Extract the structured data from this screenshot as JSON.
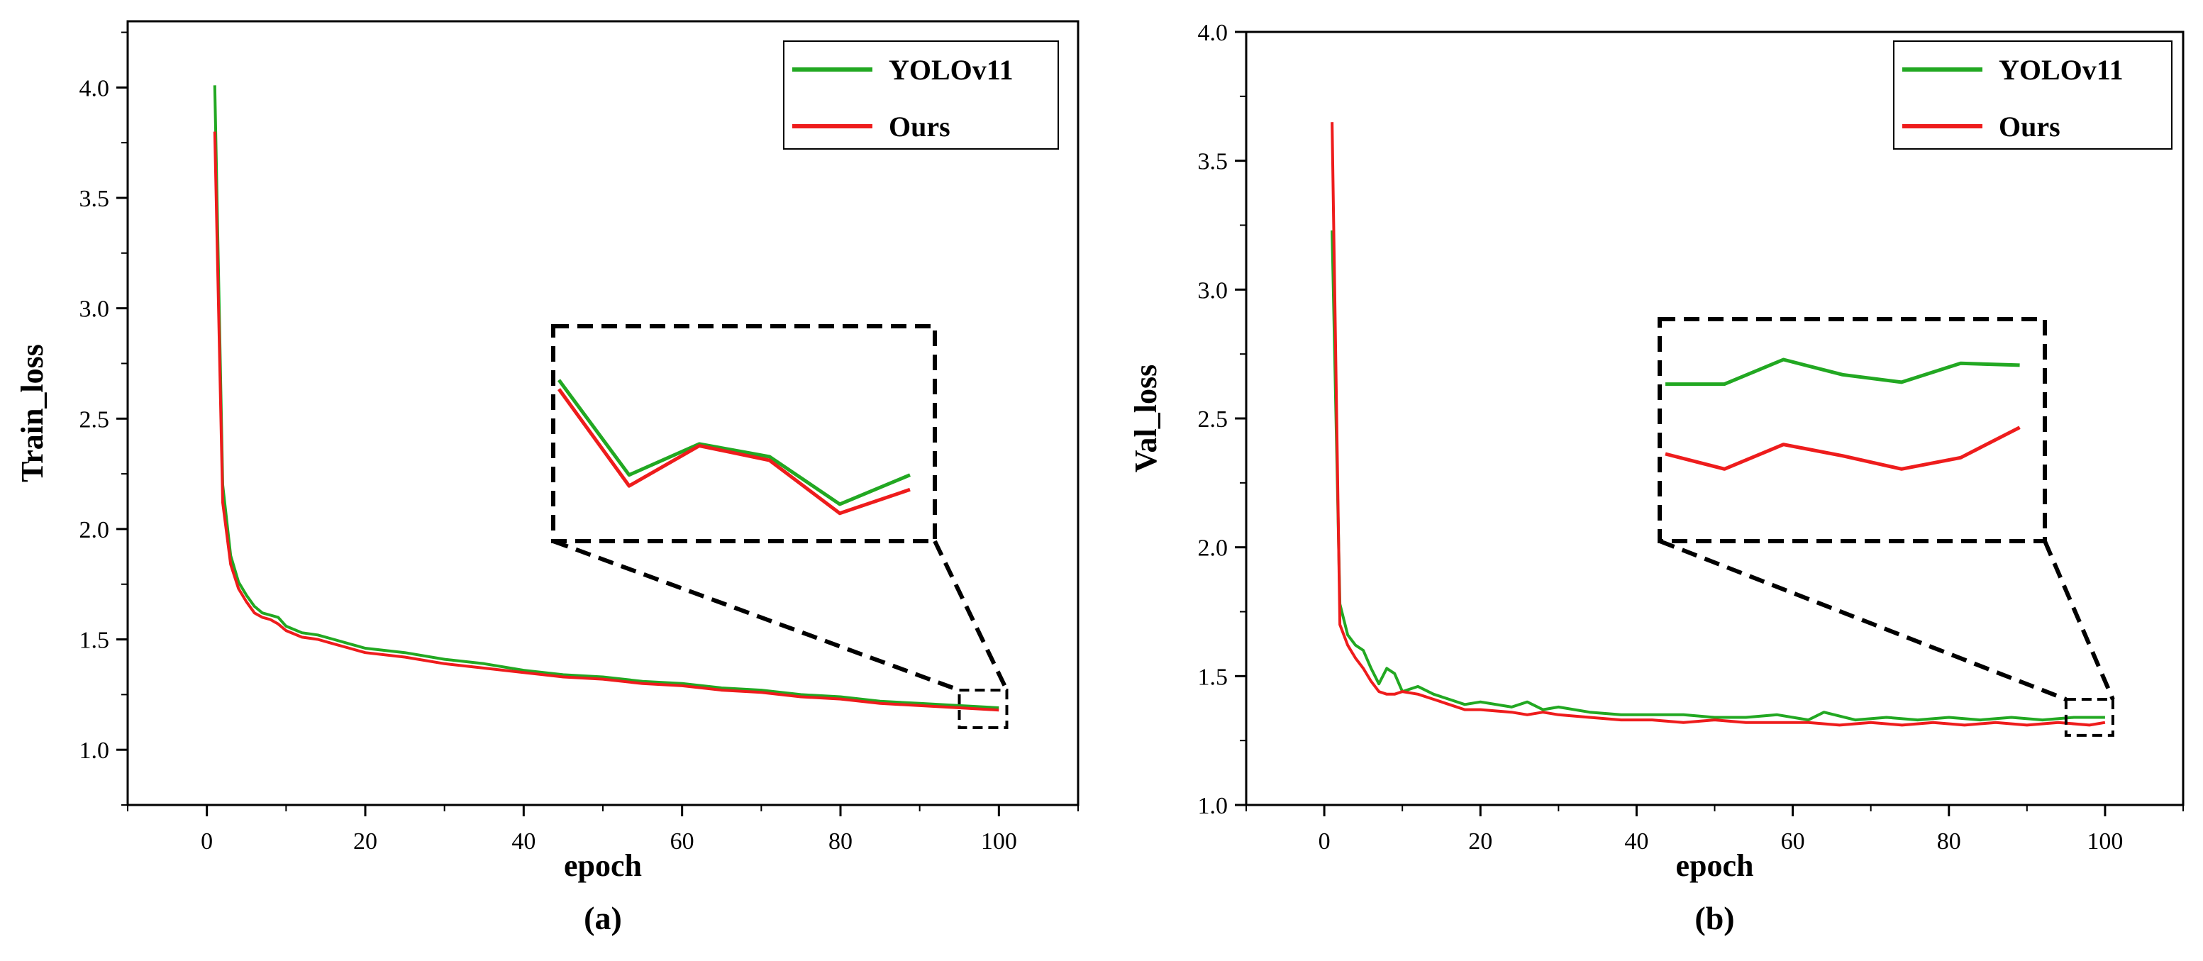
{
  "chart_data": [
    {
      "type": "line",
      "caption": "(a)",
      "xlabel": "epoch",
      "ylabel": "Train_loss",
      "xlim": [
        -10,
        110
      ],
      "ylim": [
        0.75,
        4.3
      ],
      "xticks": [
        0,
        20,
        40,
        60,
        80,
        100
      ],
      "yticks": [
        1.0,
        1.5,
        2.0,
        2.5,
        3.0,
        3.5,
        4.0
      ],
      "xtick_labels": [
        "0",
        "20",
        "40",
        "60",
        "80",
        "100"
      ],
      "ytick_labels": [
        "1.0",
        "1.5",
        "2.0",
        "2.5",
        "3.0",
        "3.5",
        "4.0"
      ],
      "legend_position": "top-right",
      "grid": false,
      "series": [
        {
          "name": "YOLOv11",
          "color": "#22a822",
          "points": [
            [
              1,
              4.01
            ],
            [
              2,
              2.2
            ],
            [
              3,
              1.88
            ],
            [
              4,
              1.76
            ],
            [
              5,
              1.7
            ],
            [
              6,
              1.65
            ],
            [
              7,
              1.62
            ],
            [
              8,
              1.61
            ],
            [
              9,
              1.6
            ],
            [
              10,
              1.56
            ],
            [
              12,
              1.53
            ],
            [
              14,
              1.52
            ],
            [
              16,
              1.5
            ],
            [
              18,
              1.48
            ],
            [
              20,
              1.46
            ],
            [
              25,
              1.44
            ],
            [
              30,
              1.41
            ],
            [
              35,
              1.39
            ],
            [
              40,
              1.36
            ],
            [
              45,
              1.34
            ],
            [
              50,
              1.33
            ],
            [
              55,
              1.31
            ],
            [
              60,
              1.3
            ],
            [
              65,
              1.28
            ],
            [
              70,
              1.27
            ],
            [
              75,
              1.25
            ],
            [
              80,
              1.24
            ],
            [
              85,
              1.22
            ],
            [
              90,
              1.21
            ],
            [
              95,
              1.2
            ],
            [
              100,
              1.19
            ]
          ]
        },
        {
          "name": "Ours",
          "color": "#ee1c1c",
          "points": [
            [
              1,
              3.8
            ],
            [
              2,
              2.12
            ],
            [
              3,
              1.84
            ],
            [
              4,
              1.73
            ],
            [
              5,
              1.67
            ],
            [
              6,
              1.62
            ],
            [
              7,
              1.6
            ],
            [
              8,
              1.59
            ],
            [
              9,
              1.57
            ],
            [
              10,
              1.54
            ],
            [
              12,
              1.51
            ],
            [
              14,
              1.5
            ],
            [
              16,
              1.48
            ],
            [
              18,
              1.46
            ],
            [
              20,
              1.44
            ],
            [
              25,
              1.42
            ],
            [
              30,
              1.39
            ],
            [
              35,
              1.37
            ],
            [
              40,
              1.35
            ],
            [
              45,
              1.33
            ],
            [
              50,
              1.32
            ],
            [
              55,
              1.3
            ],
            [
              60,
              1.29
            ],
            [
              65,
              1.27
            ],
            [
              70,
              1.26
            ],
            [
              75,
              1.24
            ],
            [
              80,
              1.23
            ],
            [
              85,
              1.21
            ],
            [
              90,
              1.2
            ],
            [
              95,
              1.19
            ],
            [
              100,
              1.18
            ]
          ]
        }
      ],
      "zoom_region": {
        "x": [
          95,
          101
        ],
        "y": [
          1.1,
          1.27
        ]
      },
      "inset": {
        "series": [
          {
            "name": "YOLOv11",
            "values": [
              0.2,
              0.72,
              0.55,
              0.62,
              0.88,
              0.72
            ]
          },
          {
            "name": "Ours",
            "values": [
              0.25,
              0.78,
              0.56,
              0.64,
              0.93,
              0.8
            ]
          }
        ]
      }
    },
    {
      "type": "line",
      "caption": "(b)",
      "xlabel": "epoch",
      "ylabel": "Val_loss",
      "xlim": [
        -10,
        110
      ],
      "ylim": [
        1.0,
        4.0
      ],
      "xticks": [
        0,
        20,
        40,
        60,
        80,
        100
      ],
      "yticks": [
        1.0,
        1.5,
        2.0,
        2.5,
        3.0,
        3.5,
        4.0
      ],
      "xtick_labels": [
        "0",
        "20",
        "40",
        "60",
        "80",
        "100"
      ],
      "ytick_labels": [
        "1.0",
        "1.5",
        "2.0",
        "2.5",
        "3.0",
        "3.5",
        "4.0"
      ],
      "legend_position": "top-right",
      "grid": false,
      "series": [
        {
          "name": "YOLOv11",
          "color": "#22a822",
          "points": [
            [
              1,
              3.23
            ],
            [
              2,
              1.78
            ],
            [
              3,
              1.66
            ],
            [
              4,
              1.62
            ],
            [
              5,
              1.6
            ],
            [
              6,
              1.53
            ],
            [
              7,
              1.47
            ],
            [
              8,
              1.53
            ],
            [
              9,
              1.51
            ],
            [
              10,
              1.44
            ],
            [
              12,
              1.46
            ],
            [
              14,
              1.43
            ],
            [
              16,
              1.41
            ],
            [
              18,
              1.39
            ],
            [
              20,
              1.4
            ],
            [
              24,
              1.38
            ],
            [
              26,
              1.4
            ],
            [
              28,
              1.37
            ],
            [
              30,
              1.38
            ],
            [
              34,
              1.36
            ],
            [
              38,
              1.35
            ],
            [
              42,
              1.35
            ],
            [
              46,
              1.35
            ],
            [
              50,
              1.34
            ],
            [
              54,
              1.34
            ],
            [
              58,
              1.35
            ],
            [
              62,
              1.33
            ],
            [
              64,
              1.36
            ],
            [
              68,
              1.33
            ],
            [
              72,
              1.34
            ],
            [
              76,
              1.33
            ],
            [
              80,
              1.34
            ],
            [
              84,
              1.33
            ],
            [
              88,
              1.34
            ],
            [
              92,
              1.33
            ],
            [
              96,
              1.34
            ],
            [
              100,
              1.34
            ]
          ]
        },
        {
          "name": "Ours",
          "color": "#ee1c1c",
          "points": [
            [
              1,
              3.65
            ],
            [
              2,
              1.7
            ],
            [
              3,
              1.62
            ],
            [
              4,
              1.57
            ],
            [
              5,
              1.53
            ],
            [
              6,
              1.48
            ],
            [
              7,
              1.44
            ],
            [
              8,
              1.43
            ],
            [
              9,
              1.43
            ],
            [
              10,
              1.44
            ],
            [
              12,
              1.43
            ],
            [
              14,
              1.41
            ],
            [
              16,
              1.39
            ],
            [
              18,
              1.37
            ],
            [
              20,
              1.37
            ],
            [
              24,
              1.36
            ],
            [
              26,
              1.35
            ],
            [
              28,
              1.36
            ],
            [
              30,
              1.35
            ],
            [
              34,
              1.34
            ],
            [
              38,
              1.33
            ],
            [
              42,
              1.33
            ],
            [
              46,
              1.32
            ],
            [
              50,
              1.33
            ],
            [
              54,
              1.32
            ],
            [
              58,
              1.32
            ],
            [
              62,
              1.32
            ],
            [
              66,
              1.31
            ],
            [
              70,
              1.32
            ],
            [
              74,
              1.31
            ],
            [
              78,
              1.32
            ],
            [
              82,
              1.31
            ],
            [
              86,
              1.32
            ],
            [
              90,
              1.31
            ],
            [
              94,
              1.32
            ],
            [
              98,
              1.31
            ],
            [
              100,
              1.32
            ]
          ]
        }
      ],
      "zoom_region": {
        "x": [
          95,
          101
        ],
        "y": [
          1.27,
          1.41
        ]
      },
      "inset": {
        "series": [
          {
            "name": "YOLOv11",
            "values": [
              0.25,
              0.25,
              0.12,
              0.2,
              0.24,
              0.14,
              0.15
            ]
          },
          {
            "name": "Ours",
            "values": [
              0.62,
              0.7,
              0.57,
              0.63,
              0.7,
              0.64,
              0.48
            ]
          }
        ]
      }
    }
  ]
}
